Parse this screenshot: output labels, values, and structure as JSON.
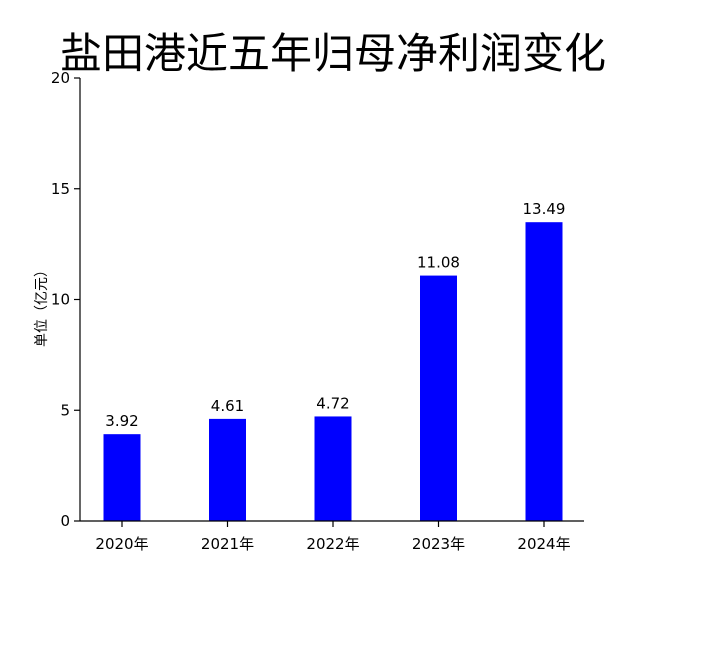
{
  "chart_data": {
    "type": "bar",
    "title": "盐田港近五年归母净利润变化",
    "xlabel": "",
    "ylabel": "单位（亿元）",
    "categories": [
      "2020年",
      "2021年",
      "2022年",
      "2023年",
      "2024年"
    ],
    "values": [
      3.92,
      4.61,
      4.72,
      11.08,
      13.49
    ],
    "data_labels": [
      "3.92",
      "4.61",
      "4.72",
      "11.08",
      "13.49"
    ],
    "ylim": [
      0,
      20
    ],
    "yticks": [
      0,
      5,
      10,
      15,
      20
    ],
    "ytick_labels": [
      "0",
      "5",
      "10",
      "15",
      "20"
    ],
    "grid": false,
    "bar_color": "#0000FF"
  }
}
